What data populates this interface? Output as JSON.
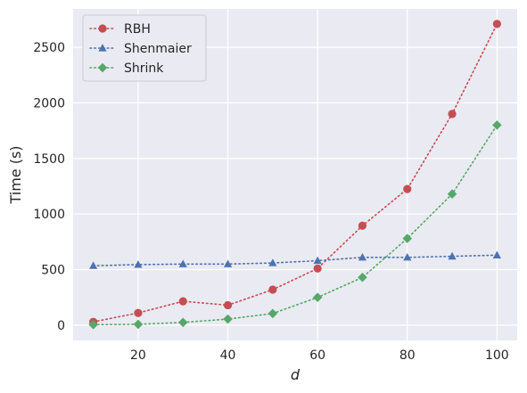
{
  "chart_data": {
    "type": "line",
    "title": "",
    "xlabel": "d",
    "ylabel": "Time (s)",
    "xlim": [
      5.5,
      104.5
    ],
    "ylim": [
      -137,
      2845
    ],
    "x_ticks": [
      20,
      40,
      60,
      80,
      100
    ],
    "y_ticks": [
      0,
      500,
      1000,
      1500,
      2000,
      2500
    ],
    "grid": true,
    "legend_position": "top-left",
    "x": [
      10,
      20,
      30,
      40,
      50,
      60,
      70,
      80,
      90,
      100
    ],
    "series": [
      {
        "name": "RBH",
        "color": "#c44e52",
        "marker": "circle",
        "line_style": "dotted",
        "values": [
          30,
          110,
          215,
          180,
          320,
          510,
          895,
          1225,
          1900,
          2710
        ]
      },
      {
        "name": "Shenmaier",
        "color": "#4c72b0",
        "marker": "triangle",
        "line_style": "dotted",
        "values": [
          535,
          545,
          550,
          550,
          560,
          580,
          610,
          610,
          620,
          630
        ]
      },
      {
        "name": "Shrink",
        "color": "#55a868",
        "marker": "diamond",
        "line_style": "dotted",
        "values": [
          5,
          8,
          25,
          55,
          105,
          250,
          430,
          780,
          1180,
          1800
        ]
      }
    ]
  }
}
